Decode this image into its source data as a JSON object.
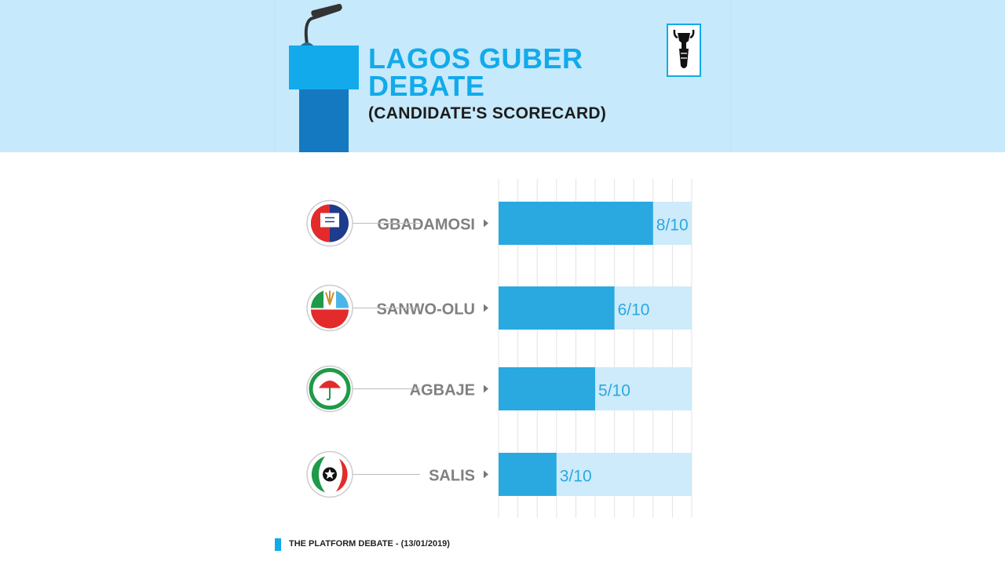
{
  "header": {
    "title_line1": "LAGOS GUBER",
    "title_line2": "DEBATE",
    "subtitle": "(CANDIDATE'S SCORECARD)"
  },
  "footer": {
    "source": "THE PLATFORM DEBATE - (13/01/2019)"
  },
  "colors": {
    "header_bg": "#c6e9fb",
    "accent": "#12aaeb",
    "bar": "#29a9e0",
    "bar_track": "#cdebfb",
    "label_gray": "#808080"
  },
  "chart_data": {
    "type": "bar",
    "orientation": "horizontal",
    "title": "LAGOS GUBER DEBATE (CANDIDATE'S SCORECARD)",
    "xlabel": "",
    "ylabel": "",
    "xlim": [
      0,
      10
    ],
    "grid": true,
    "categories": [
      "GBADAMOSI",
      "SANWO-OLU",
      "AGBAJE",
      "SALIS"
    ],
    "values": [
      8,
      6,
      5,
      3
    ],
    "value_labels": [
      "8/10",
      "6/10",
      "5/10",
      "3/10"
    ],
    "party_logos": [
      {
        "text": "ADP",
        "icon": "adp-logo-icon"
      },
      {
        "text": "APC",
        "icon": "apc-logo-icon"
      },
      {
        "text": "PDP",
        "icon": "pdp-logo-icon"
      },
      {
        "text": "",
        "icon": "star-party-logo-icon"
      }
    ]
  }
}
